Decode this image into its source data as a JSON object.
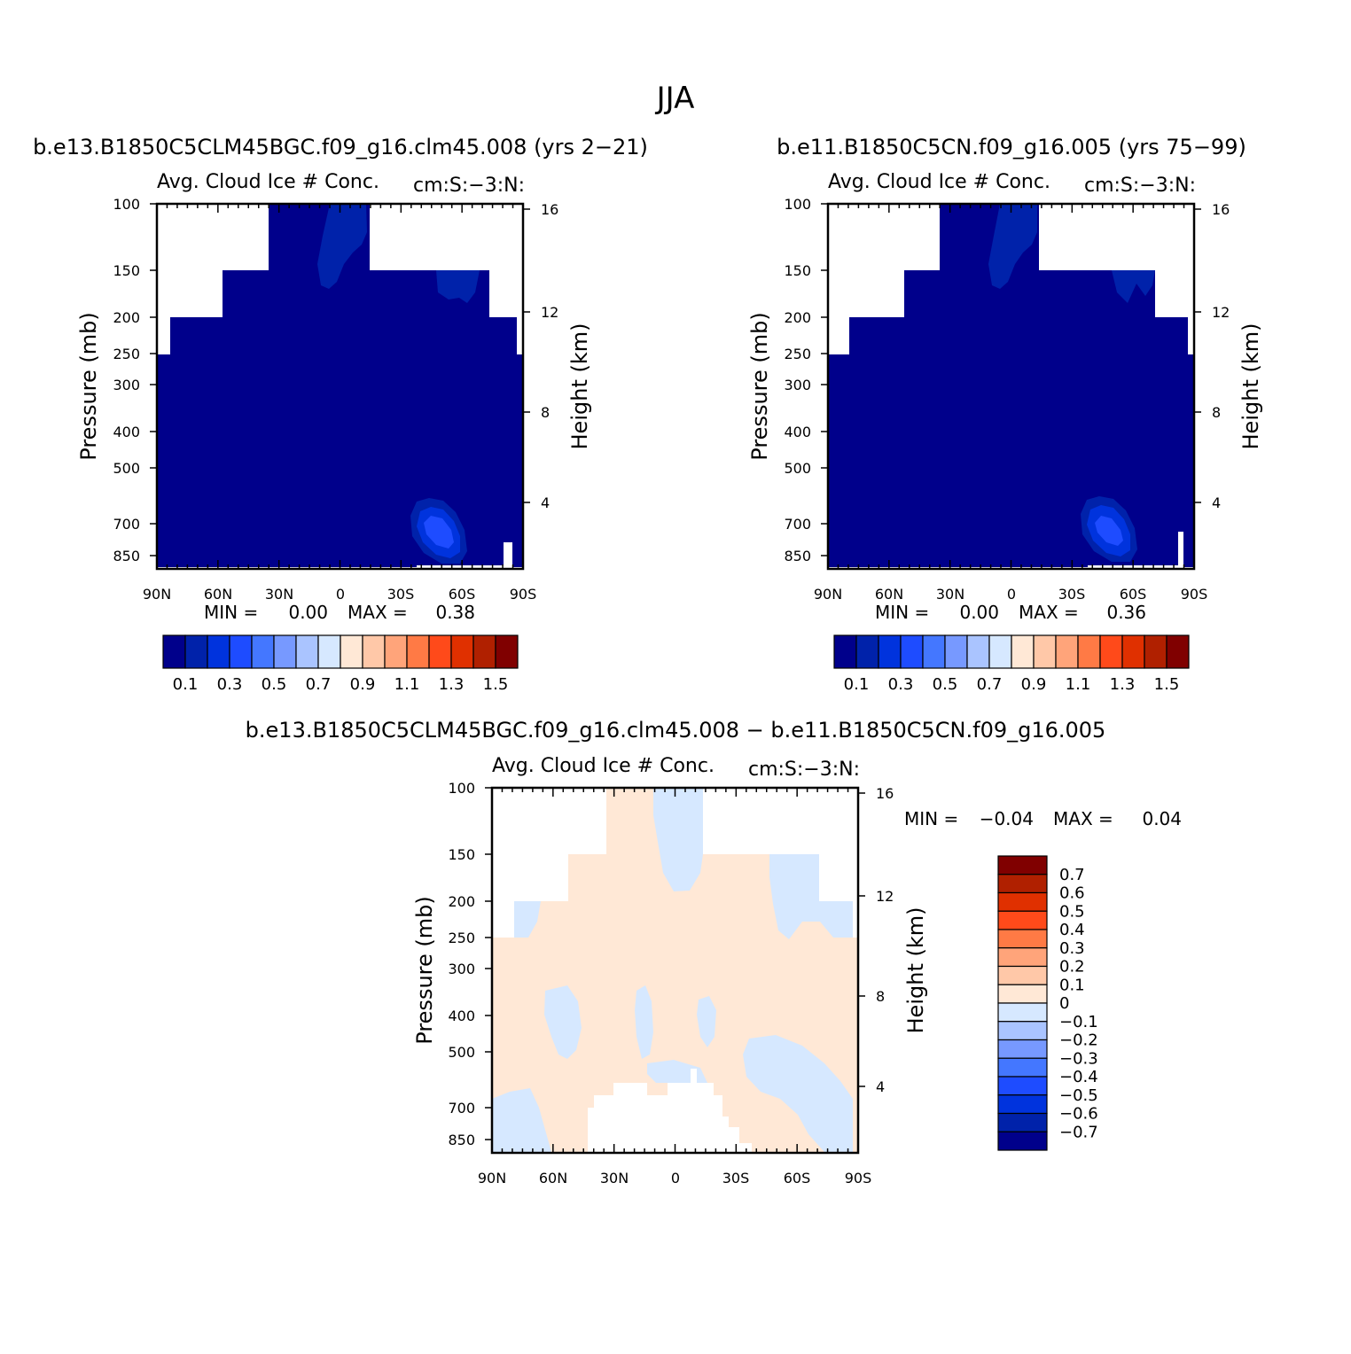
{
  "figure_title": "JJA",
  "chart_data": [
    {
      "type": "heatmap",
      "subplot_title": "b.e13.B1850C5CLM45BGC.f09_g16.clm45.008 (yrs 2-21)",
      "variable_label": "Avg. Cloud Ice # Conc.",
      "units_label": "cm:S:-3:N:",
      "xlabel": "",
      "ylabel": "Pressure (mb)",
      "ylabel_right": "Height (km)",
      "x_ticks": [
        "90N",
        "60N",
        "30N",
        "0",
        "30S",
        "60S",
        "90S"
      ],
      "y_ticks": [
        "100",
        "150",
        "200",
        "250",
        "300",
        "400",
        "500",
        "700",
        "850"
      ],
      "y_ticks_right": [
        "16",
        "12",
        "8",
        "4"
      ],
      "min_label": "MIN =",
      "min_value": "0.00",
      "max_label": "MAX =",
      "max_value": "0.38",
      "colorbar_levels": [
        "0.1",
        "0.3",
        "0.5",
        "0.7",
        "0.9",
        "1.1",
        "1.3",
        "1.5"
      ],
      "colorbar_colors": [
        "#00008b",
        "#0022aa",
        "#0033dd",
        "#1e4cff",
        "#4477ff",
        "#7799ff",
        "#aac4ff",
        "#d6e8ff",
        "#ffe8d6",
        "#ffc8a8",
        "#ffa47a",
        "#ff7a45",
        "#ff4a1a",
        "#e03000",
        "#b02000",
        "#800000"
      ],
      "max_value_numeric": 0.38
    },
    {
      "type": "heatmap",
      "subplot_title": "b.e11.B1850C5CN.f09_g16.005 (yrs 75-99)",
      "variable_label": "Avg. Cloud Ice # Conc.",
      "units_label": "cm:S:-3:N:",
      "xlabel": "",
      "ylabel": "Pressure (mb)",
      "ylabel_right": "Height (km)",
      "x_ticks": [
        "90N",
        "60N",
        "30N",
        "0",
        "30S",
        "60S",
        "90S"
      ],
      "y_ticks": [
        "100",
        "150",
        "200",
        "250",
        "300",
        "400",
        "500",
        "700",
        "850"
      ],
      "y_ticks_right": [
        "16",
        "12",
        "8",
        "4"
      ],
      "min_label": "MIN =",
      "min_value": "0.00",
      "max_label": "MAX =",
      "max_value": "0.36",
      "colorbar_levels": [
        "0.1",
        "0.3",
        "0.5",
        "0.7",
        "0.9",
        "1.1",
        "1.3",
        "1.5"
      ],
      "colorbar_colors": [
        "#00008b",
        "#0022aa",
        "#0033dd",
        "#1e4cff",
        "#4477ff",
        "#7799ff",
        "#aac4ff",
        "#d6e8ff",
        "#ffe8d6",
        "#ffc8a8",
        "#ffa47a",
        "#ff7a45",
        "#ff4a1a",
        "#e03000",
        "#b02000",
        "#800000"
      ],
      "max_value_numeric": 0.36
    },
    {
      "type": "heatmap",
      "subplot_title": "b.e13.B1850C5CLM45BGC.f09_g16.clm45.008 - b.e11.B1850C5CN.f09_g16.005",
      "variable_label": "Avg. Cloud Ice # Conc.",
      "units_label": "cm:S:-3:N:",
      "xlabel": "",
      "ylabel": "Pressure (mb)",
      "ylabel_right": "Height (km)",
      "x_ticks": [
        "90N",
        "60N",
        "30N",
        "0",
        "30S",
        "60S",
        "90S"
      ],
      "y_ticks": [
        "100",
        "150",
        "200",
        "250",
        "300",
        "400",
        "500",
        "700",
        "850"
      ],
      "y_ticks_right": [
        "16",
        "12",
        "8",
        "4"
      ],
      "min_label": "MIN =",
      "min_value": "-0.04",
      "max_label": "MAX =",
      "max_value": "0.04",
      "colorbar_levels": [
        "0.7",
        "0.6",
        "0.5",
        "0.4",
        "0.3",
        "0.2",
        "0.1",
        "0",
        "-0.1",
        "-0.2",
        "-0.3",
        "-0.4",
        "-0.5",
        "-0.6",
        "-0.7"
      ],
      "colorbar_colors": [
        "#800000",
        "#b02000",
        "#e03000",
        "#ff4a1a",
        "#ff7a45",
        "#ffa47a",
        "#ffc8a8",
        "#ffe8d6",
        "#d6e8ff",
        "#aac4ff",
        "#7799ff",
        "#4477ff",
        "#1e4cff",
        "#0033dd",
        "#0022aa",
        "#00008b"
      ],
      "positive_color": "#ffe8d6",
      "negative_color": "#d6e8ff"
    }
  ]
}
